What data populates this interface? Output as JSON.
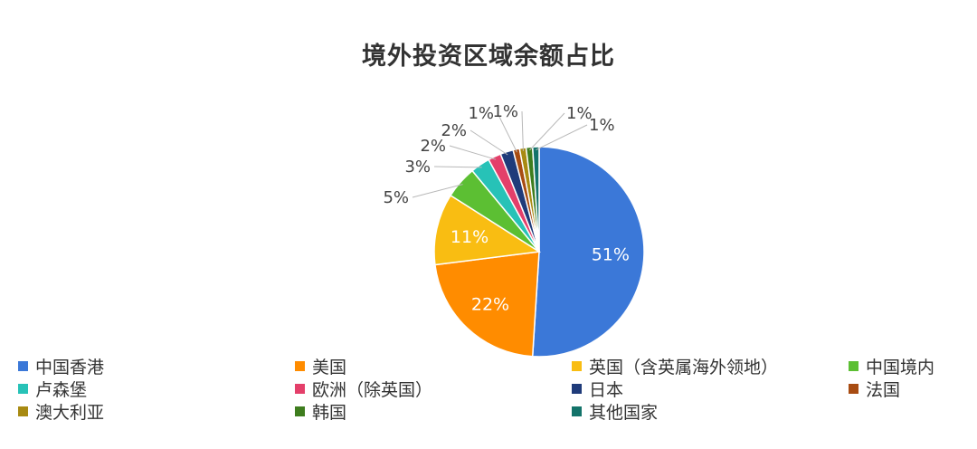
{
  "chart_data": {
    "type": "pie",
    "title": "境外投资区域余额占比",
    "slices": [
      {
        "name": "中国香港",
        "value": 51,
        "label": "51%",
        "color": "#3b78d8"
      },
      {
        "name": "美国",
        "value": 22,
        "label": "22%",
        "color": "#ff8c00"
      },
      {
        "name": "英国（含英属海外领地）",
        "value": 11,
        "label": "11%",
        "color": "#f9bd12"
      },
      {
        "name": "中国境内",
        "value": 5,
        "label": "5%",
        "color": "#5cbf33"
      },
      {
        "name": "卢森堡",
        "value": 3,
        "label": "3%",
        "color": "#27c2b7"
      },
      {
        "name": "欧洲（除英国）",
        "value": 2,
        "label": "2%",
        "color": "#e43f6a"
      },
      {
        "name": "日本",
        "value": 2,
        "label": "2%",
        "color": "#1f3b7a"
      },
      {
        "name": "法国",
        "value": 1,
        "label": "1%",
        "color": "#a84c12"
      },
      {
        "name": "澳大利亚",
        "value": 1,
        "label": "1%",
        "color": "#a88a12"
      },
      {
        "name": "韩国",
        "value": 1,
        "label": "1%",
        "color": "#3e7d1e"
      },
      {
        "name": "其他国家",
        "value": 1,
        "label": "1%",
        "color": "#13736a"
      }
    ],
    "legend_placement": "bottom"
  }
}
